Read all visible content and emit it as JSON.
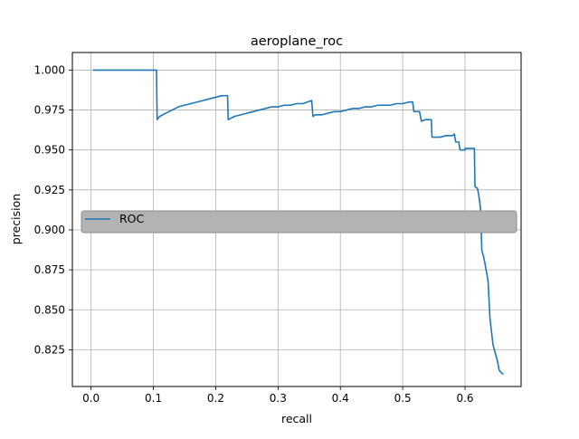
{
  "chart_data": {
    "type": "line",
    "title": "aeroplane_roc",
    "xlabel": "recall",
    "ylabel": "precision",
    "xlim": [
      -0.03,
      0.69
    ],
    "ylim": [
      0.802,
      1.011
    ],
    "xticks": [
      0.0,
      0.1,
      0.2,
      0.3,
      0.4,
      0.5,
      0.6
    ],
    "xtick_labels": [
      "0.0",
      "0.1",
      "0.2",
      "0.3",
      "0.4",
      "0.5",
      "0.6"
    ],
    "yticks": [
      0.825,
      0.85,
      0.875,
      0.9,
      0.925,
      0.95,
      0.975,
      1.0
    ],
    "ytick_labels": [
      "0.825",
      "0.850",
      "0.875",
      "0.900",
      "0.925",
      "0.950",
      "0.975",
      "1.000"
    ],
    "grid": true,
    "legend": {
      "placement": "center-left",
      "frame_color": "#b0b0b0"
    },
    "series": [
      {
        "name": "ROC",
        "color": "#1f77b4",
        "x": [
          0.003,
          0.105,
          0.106,
          0.11,
          0.12,
          0.13,
          0.14,
          0.15,
          0.16,
          0.17,
          0.18,
          0.19,
          0.2,
          0.21,
          0.219,
          0.22,
          0.23,
          0.24,
          0.25,
          0.26,
          0.27,
          0.28,
          0.29,
          0.3,
          0.31,
          0.32,
          0.33,
          0.34,
          0.354,
          0.356,
          0.36,
          0.37,
          0.38,
          0.39,
          0.4,
          0.41,
          0.42,
          0.43,
          0.44,
          0.45,
          0.46,
          0.47,
          0.48,
          0.49,
          0.5,
          0.51,
          0.516,
          0.518,
          0.527,
          0.53,
          0.537,
          0.546,
          0.547,
          0.553,
          0.56,
          0.57,
          0.58,
          0.583,
          0.585,
          0.59,
          0.592,
          0.593,
          0.6,
          0.6,
          0.61,
          0.615,
          0.616,
          0.62,
          0.622,
          0.625,
          0.627,
          0.63,
          0.632,
          0.637,
          0.64,
          0.642,
          0.645,
          0.652,
          0.655,
          0.66,
          0.662
        ],
        "y": [
          1.0,
          1.0,
          0.969,
          0.971,
          0.973,
          0.975,
          0.977,
          0.978,
          0.979,
          0.98,
          0.981,
          0.982,
          0.983,
          0.984,
          0.984,
          0.969,
          0.971,
          0.972,
          0.973,
          0.974,
          0.975,
          0.976,
          0.977,
          0.977,
          0.978,
          0.978,
          0.979,
          0.979,
          0.981,
          0.971,
          0.972,
          0.972,
          0.973,
          0.974,
          0.974,
          0.975,
          0.976,
          0.976,
          0.977,
          0.977,
          0.978,
          0.978,
          0.978,
          0.979,
          0.979,
          0.98,
          0.98,
          0.974,
          0.974,
          0.968,
          0.969,
          0.969,
          0.958,
          0.958,
          0.958,
          0.959,
          0.959,
          0.96,
          0.955,
          0.955,
          0.95,
          0.95,
          0.95,
          0.951,
          0.951,
          0.951,
          0.927,
          0.926,
          0.922,
          0.913,
          0.887,
          0.883,
          0.879,
          0.868,
          0.845,
          0.838,
          0.828,
          0.818,
          0.812,
          0.81,
          0.81
        ]
      }
    ]
  }
}
